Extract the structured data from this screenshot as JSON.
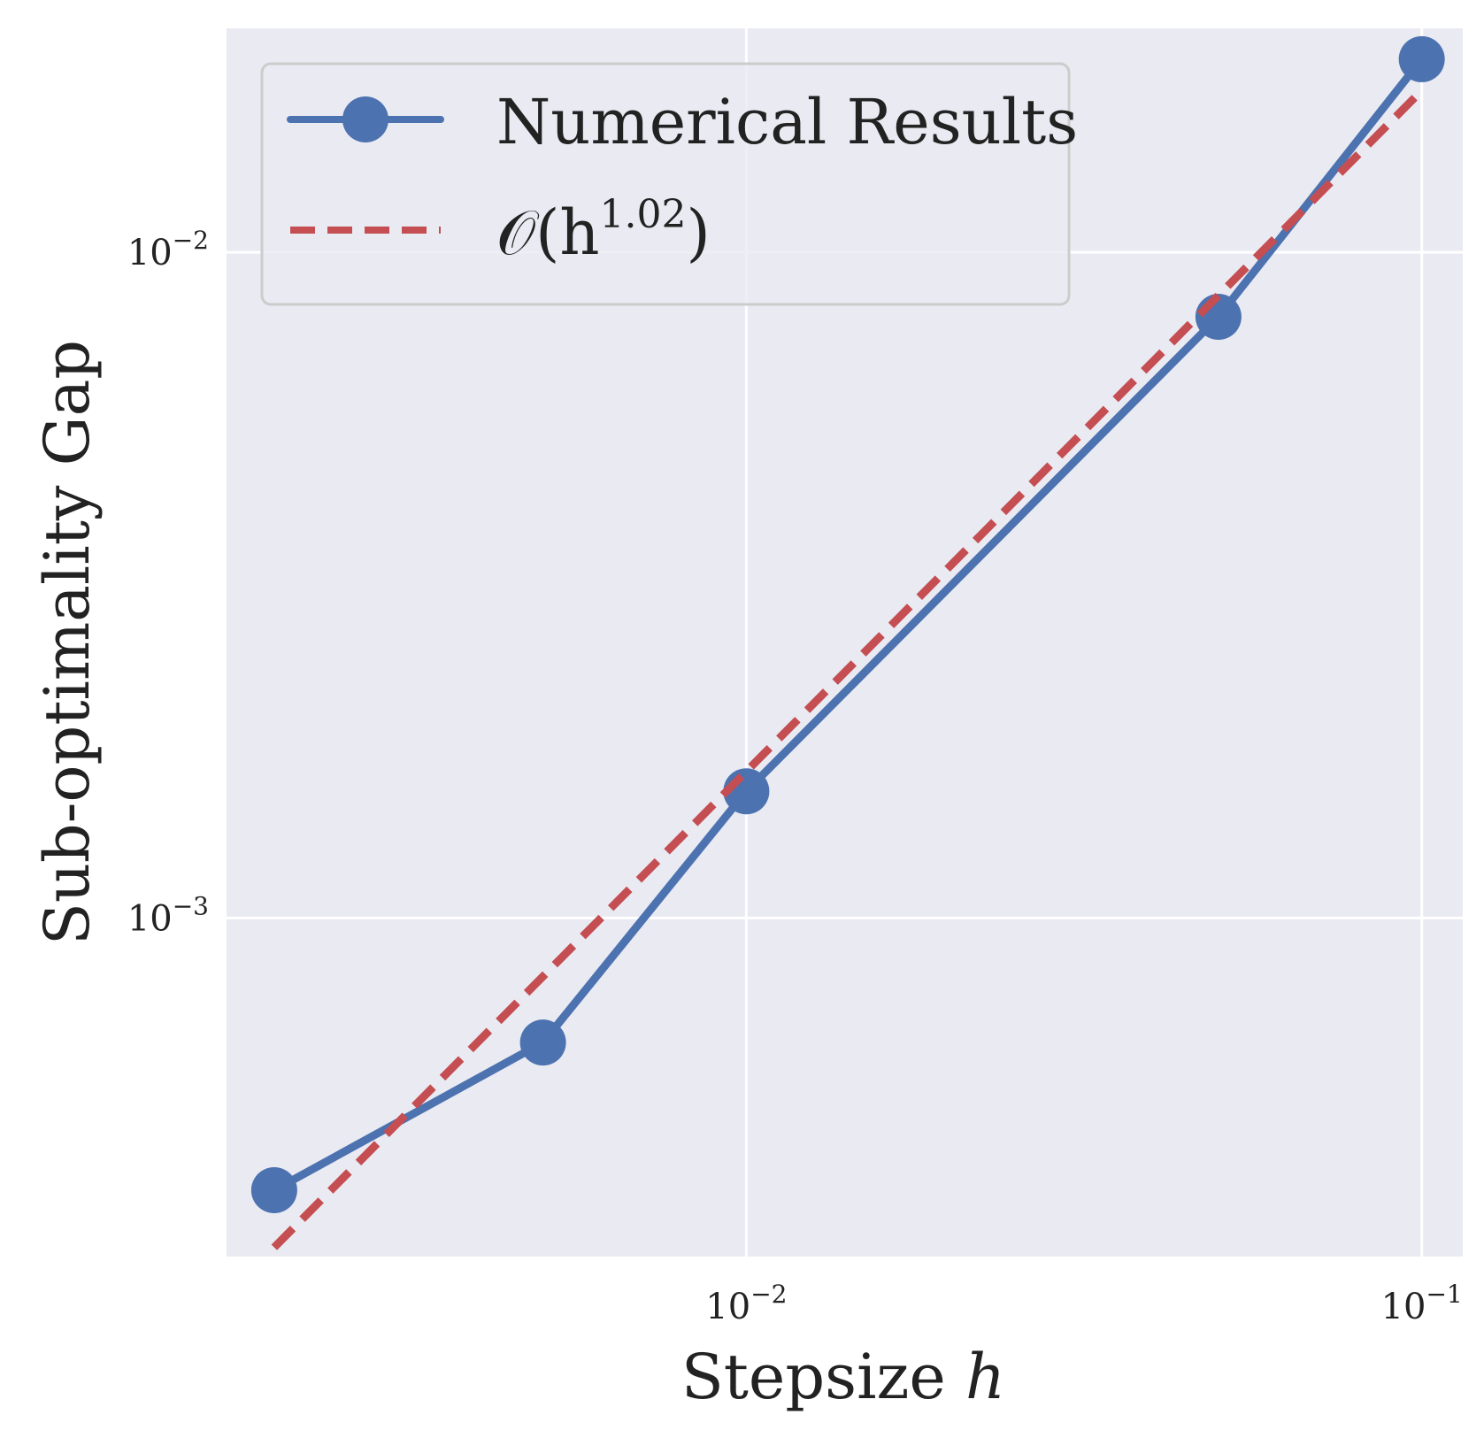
{
  "chart_data": {
    "type": "line",
    "title": "",
    "xlabel": "Stepsize",
    "xlabel_var": "h",
    "ylabel": "Sub-optimality Gap",
    "xscale": "log",
    "yscale": "log",
    "xlim": [
      0.0017,
      0.115
    ],
    "ylim": [
      0.00031,
      0.0217
    ],
    "grid": true,
    "legend_position": "top-left",
    "x_ticks": [
      {
        "value": 0.01,
        "base": "10",
        "exp": "−2"
      },
      {
        "value": 0.1,
        "base": "10",
        "exp": "−1"
      }
    ],
    "y_ticks": [
      {
        "value": 0.01,
        "base": "10",
        "exp": "−2"
      },
      {
        "value": 0.001,
        "base": "10",
        "exp": "−3"
      }
    ],
    "series": [
      {
        "name": "Numerical Results",
        "style": "solid-marker",
        "color": "#4c72b0",
        "x": [
          0.002,
          0.005,
          0.01,
          0.05,
          0.1
        ],
        "y": [
          0.00039,
          0.00065,
          0.00155,
          0.008,
          0.0195
        ]
      },
      {
        "name": "O(h^1.02)",
        "legend_prefix": "𝒪(h",
        "legend_sup": "1.02",
        "legend_suffix": ")",
        "style": "dashed",
        "color": "#c44e52",
        "x": [
          0.002,
          0.1
        ],
        "y": [
          0.00032,
          0.0175
        ]
      }
    ]
  }
}
